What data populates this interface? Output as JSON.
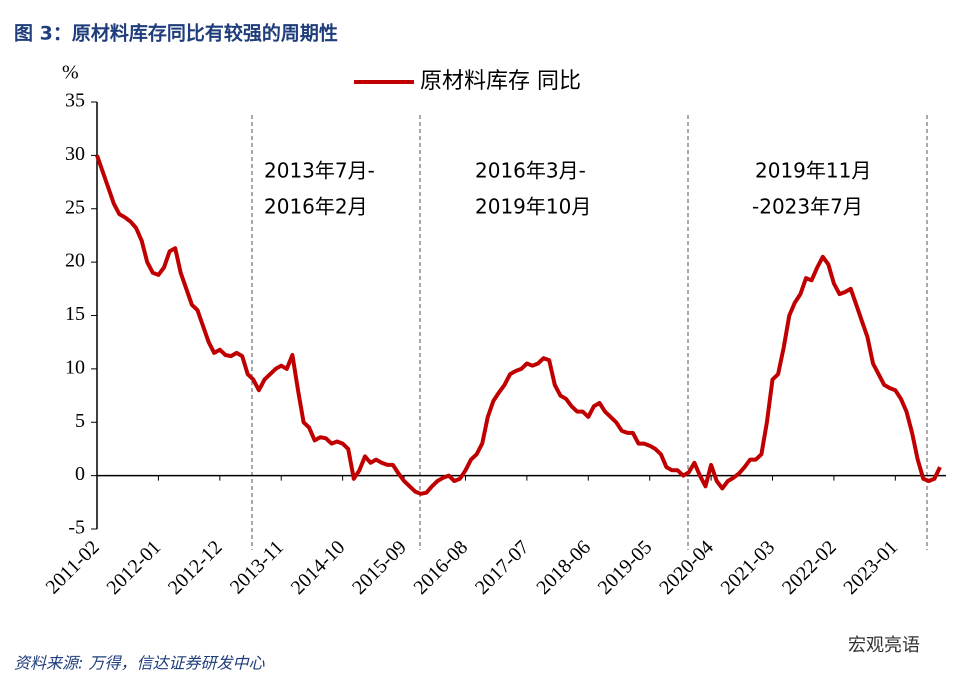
{
  "chart_data": {
    "type": "line",
    "title": "图 3：原材料库存同比有较强的周期性",
    "y_unit": "%",
    "annotations": [
      "2013年7月-",
      "2016年2月",
      "2016年3月-",
      "2019年10月",
      "2019年11月",
      "-2023年7月"
    ],
    "source": "资料来源: 万得，信达证券研发中心",
    "watermark": "宏观亮语",
    "categories": [
      "2011-02",
      null,
      null,
      null,
      null,
      null,
      null,
      null,
      null,
      null,
      null,
      "2012-01",
      null,
      null,
      null,
      null,
      null,
      null,
      null,
      null,
      null,
      null,
      "2012-12",
      null,
      null,
      null,
      null,
      null,
      null,
      null,
      null,
      null,
      null,
      "2013-11",
      null,
      null,
      null,
      null,
      null,
      null,
      null,
      null,
      null,
      null,
      "2014-10",
      null,
      null,
      null,
      null,
      null,
      null,
      null,
      null,
      null,
      null,
      "2015-09",
      null,
      null,
      null,
      null,
      null,
      null,
      null,
      null,
      null,
      null,
      "2016-08",
      null,
      null,
      null,
      null,
      null,
      null,
      null,
      null,
      null,
      null,
      "2017-07",
      null,
      null,
      null,
      null,
      null,
      null,
      null,
      null,
      null,
      null,
      "2018-06",
      null,
      null,
      null,
      null,
      null,
      null,
      null,
      null,
      null,
      null,
      "2019-05",
      null,
      null,
      null,
      null,
      null,
      null,
      null,
      null,
      null,
      null,
      "2020-04",
      null,
      null,
      null,
      null,
      null,
      null,
      null,
      null,
      null,
      null,
      "2021-03",
      null,
      null,
      null,
      null,
      null,
      null,
      null,
      null,
      null,
      null,
      "2022-02",
      null,
      null,
      null,
      null,
      null,
      null,
      null,
      null,
      null,
      null,
      "2023-01",
      null,
      null,
      null,
      null,
      null,
      null,
      null,
      null
    ],
    "series": [
      {
        "name": "原材料库存 同比",
        "color": "#c00000",
        "values": [
          30,
          28.5,
          27,
          25.5,
          24.5,
          24.2,
          23.8,
          23.2,
          22,
          20,
          19,
          18.8,
          19.5,
          21,
          21.3,
          19,
          17.5,
          16,
          15.5,
          14,
          12.5,
          11.5,
          11.8,
          11.3,
          11.2,
          11.5,
          11.2,
          9.5,
          9,
          8,
          9,
          9.5,
          10,
          10.3,
          10,
          11.3,
          8,
          5,
          4.5,
          3.3,
          3.6,
          3.5,
          3,
          3.2,
          3,
          2.5,
          -0.3,
          0.5,
          1.8,
          1.2,
          1.5,
          1.2,
          1,
          1,
          0.2,
          -0.5,
          -1,
          -1.5,
          -1.7,
          -1.6,
          -1,
          -0.5,
          -0.2,
          0,
          -0.5,
          -0.3,
          0.5,
          1.5,
          2,
          3,
          5.5,
          7,
          7.8,
          8.5,
          9.5,
          9.8,
          10,
          10.5,
          10.3,
          10.5,
          11,
          10.8,
          8.5,
          7.5,
          7.2,
          6.5,
          6,
          6,
          5.5,
          6.5,
          6.8,
          6,
          5.5,
          5,
          4.2,
          4,
          4,
          3,
          3,
          2.8,
          2.5,
          2,
          0.8,
          0.5,
          0.5,
          0,
          0.3,
          1.2,
          0,
          -1,
          1,
          -0.5,
          -1.2,
          -0.5,
          -0.2,
          0.2,
          0.8,
          1.5,
          1.5,
          2,
          5,
          9,
          9.5,
          12,
          15,
          16.2,
          17,
          18.5,
          18.3,
          19.5,
          20.5,
          19.8,
          18,
          17,
          17.2,
          17.5,
          16,
          14.5,
          13,
          10.5,
          9.5,
          8.5,
          8.2,
          8,
          7.2,
          6,
          4,
          1.5,
          -0.3,
          -0.5,
          -0.3,
          0.8
        ]
      }
    ],
    "ylim": [
      -5,
      35
    ],
    "yticks": [
      -5,
      0,
      5,
      10,
      15,
      20,
      25,
      30,
      35
    ]
  }
}
